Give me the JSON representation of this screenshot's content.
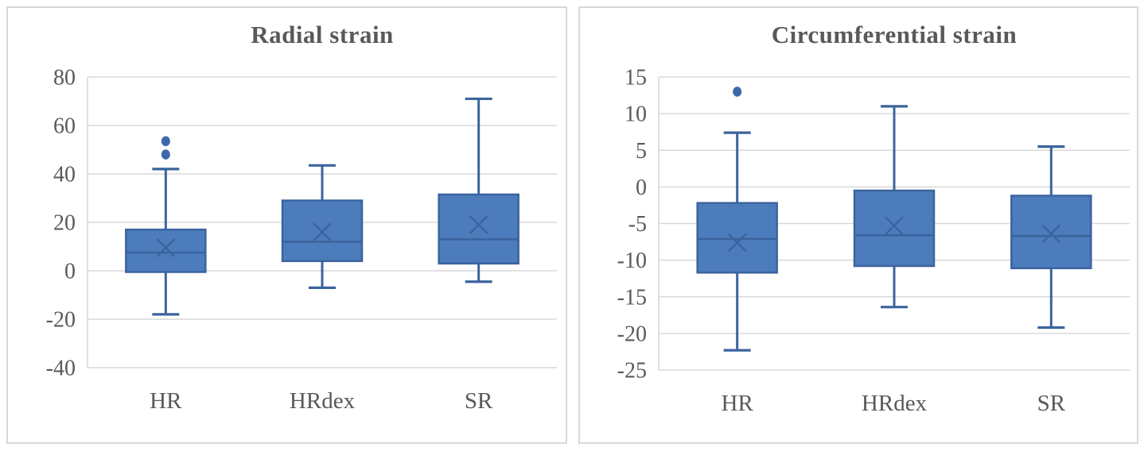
{
  "figure": {
    "background": "#ffffff",
    "panel_count": 2
  },
  "colors": {
    "box_fill": "#4d7cbc",
    "box_stroke": "#3b649e",
    "median_stroke": "#3b649e",
    "mean_marker_stroke": "#3b649e",
    "outlier_fill": "#3d69ac",
    "gridline": "#d9d9d9",
    "axis_line": "#d9d9d9",
    "title_text": "#595959",
    "tick_text": "#595959",
    "panel_border": "#d8d8d8"
  },
  "chart_data": [
    {
      "type": "box",
      "title": "Radial strain",
      "xlabel": "",
      "ylabel": "",
      "categories": [
        "HR",
        "HRdex",
        "SR"
      ],
      "ylim": [
        -40,
        80
      ],
      "yticks": [
        80,
        60,
        40,
        20,
        0,
        -20,
        -40
      ],
      "grid": true,
      "legend": false,
      "mean_marker": "x",
      "series": [
        {
          "category": "HR",
          "whisker_low": -18,
          "q1": -0.5,
          "median": 7.5,
          "q3": 17,
          "whisker_high": 42,
          "mean": 9.5,
          "outliers": [
            48,
            53.5
          ]
        },
        {
          "category": "HRdex",
          "whisker_low": -7,
          "q1": 4,
          "median": 12,
          "q3": 29,
          "whisker_high": 43.5,
          "mean": 16,
          "outliers": []
        },
        {
          "category": "SR",
          "whisker_low": -4.5,
          "q1": 3,
          "median": 13,
          "q3": 31.5,
          "whisker_high": 71,
          "mean": 19,
          "outliers": []
        }
      ]
    },
    {
      "type": "box",
      "title": "Circumferential strain",
      "xlabel": "",
      "ylabel": "",
      "categories": [
        "HR",
        "HRdex",
        "SR"
      ],
      "ylim": [
        -25,
        15
      ],
      "yticks": [
        15,
        10,
        5,
        0,
        -5,
        -10,
        -15,
        -20,
        -25
      ],
      "grid": true,
      "legend": false,
      "mean_marker": "x",
      "series": [
        {
          "category": "HR",
          "whisker_low": -22.3,
          "q1": -11.7,
          "median": -7.1,
          "q3": -2.2,
          "whisker_high": 7.4,
          "mean": -7.6,
          "outliers": [
            13
          ]
        },
        {
          "category": "HRdex",
          "whisker_low": -16.4,
          "q1": -10.8,
          "median": -6.6,
          "q3": -0.5,
          "whisker_high": 11,
          "mean": -5.3,
          "outliers": []
        },
        {
          "category": "SR",
          "whisker_low": -19.2,
          "q1": -11.1,
          "median": -6.7,
          "q3": -1.2,
          "whisker_high": 5.5,
          "mean": -6.4,
          "outliers": []
        }
      ]
    }
  ]
}
